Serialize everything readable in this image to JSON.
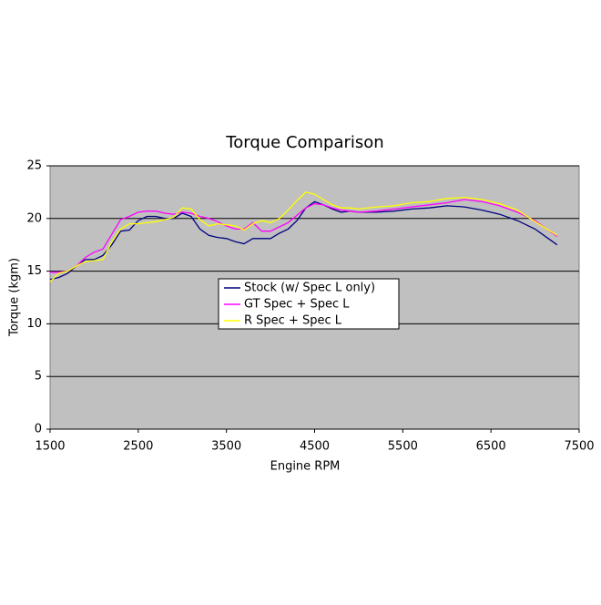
{
  "chart_data": {
    "type": "line",
    "title": "Torque Comparison",
    "x_label": "Engine RPM",
    "y_label": "Torque (kgm)",
    "x": [
      1500,
      1600,
      1700,
      1800,
      1900,
      2000,
      2100,
      2200,
      2300,
      2400,
      2500,
      2600,
      2700,
      2800,
      2900,
      3000,
      3100,
      3200,
      3300,
      3400,
      3500,
      3600,
      3700,
      3800,
      3900,
      4000,
      4100,
      4200,
      4300,
      4400,
      4500,
      4600,
      4700,
      4800,
      4900,
      5000,
      5200,
      5400,
      5600,
      5800,
      6000,
      6200,
      6400,
      6600,
      6800,
      7000,
      7250
    ],
    "series": [
      {
        "name": "Stock (w/ Spec L only)",
        "color": "#000080",
        "values": [
          14.2,
          14.4,
          14.8,
          15.5,
          16.1,
          16.1,
          16.5,
          17.5,
          18.8,
          18.9,
          19.8,
          20.2,
          20.2,
          20.0,
          20.0,
          20.5,
          20.2,
          19.0,
          18.4,
          18.2,
          18.1,
          17.8,
          17.6,
          18.1,
          18.1,
          18.1,
          18.6,
          19.0,
          19.8,
          21.0,
          21.6,
          21.3,
          20.9,
          20.6,
          20.7,
          20.6,
          20.6,
          20.7,
          20.9,
          21.0,
          21.2,
          21.1,
          20.8,
          20.4,
          19.8,
          19.0,
          17.5
        ]
      },
      {
        "name": "GT Spec + Spec L",
        "color": "#ff00ff",
        "values": [
          14.9,
          14.9,
          15.0,
          15.5,
          16.3,
          16.8,
          17.1,
          18.5,
          19.9,
          20.2,
          20.6,
          20.7,
          20.7,
          20.5,
          20.4,
          20.6,
          20.5,
          20.2,
          20.0,
          19.7,
          19.3,
          19.0,
          19.0,
          19.6,
          18.8,
          18.8,
          19.2,
          19.6,
          20.3,
          21.0,
          21.4,
          21.3,
          21.0,
          20.8,
          20.7,
          20.6,
          20.7,
          20.9,
          21.1,
          21.3,
          21.5,
          21.8,
          21.6,
          21.2,
          20.6,
          19.8,
          18.3
        ]
      },
      {
        "name": "R Spec + Spec L",
        "color": "#ffff00",
        "values": [
          14.0,
          14.8,
          15.0,
          15.5,
          15.9,
          16.0,
          16.1,
          17.8,
          19.0,
          19.5,
          19.5,
          19.6,
          19.7,
          19.9,
          20.1,
          21.0,
          20.9,
          19.9,
          19.3,
          19.5,
          19.4,
          19.3,
          18.9,
          19.5,
          19.8,
          19.6,
          20.0,
          20.8,
          21.7,
          22.5,
          22.3,
          21.8,
          21.3,
          21.0,
          21.0,
          20.9,
          21.1,
          21.2,
          21.5,
          21.6,
          21.9,
          22.0,
          21.8,
          21.4,
          20.8,
          19.7,
          18.4
        ]
      }
    ],
    "xlim": [
      1500,
      7500
    ],
    "xticks": [
      1500,
      2500,
      3500,
      4500,
      5500,
      6500,
      7500
    ],
    "ylim": [
      0,
      25
    ],
    "yticks": [
      0,
      5,
      10,
      15,
      20,
      25
    ],
    "grid": true,
    "background": "#c0c0c0"
  }
}
